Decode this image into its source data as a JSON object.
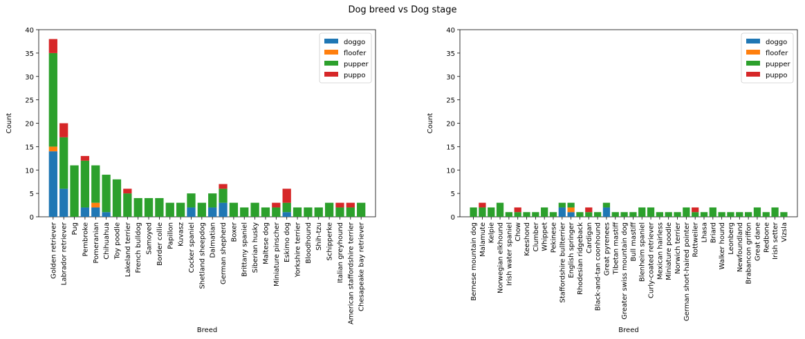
{
  "suptitle": "Dog breed vs Dog stage",
  "colors": {
    "doggo": "#1f77b4",
    "floofer": "#ff7f0e",
    "pupper": "#2ca02c",
    "puppo": "#d62728"
  },
  "chart_data": [
    {
      "type": "bar",
      "stacked": true,
      "title": "",
      "xlabel": "Breed",
      "ylabel": "Count",
      "ylim": [
        0,
        40
      ],
      "yticks": [
        0,
        5,
        10,
        15,
        20,
        25,
        30,
        35,
        40
      ],
      "legend": "top-right",
      "categories": [
        "Golden retriever",
        "Labrador retriever",
        "Pug",
        "Pembroke",
        "Pomeranian",
        "Chihuahua",
        "Toy poodle",
        "Lakeland terrier",
        "French bulldog",
        "Samoyed",
        "Border collie",
        "Papillon",
        "Kuvasz",
        "Cocker spaniel",
        "Shetland sheepdog",
        "Dalmatian",
        "German shepherd",
        "Boxer",
        "Brittany spaniel",
        "Siberian husky",
        "Maltese dog",
        "Miniature pinscher",
        "Eskimo dog",
        "Yorkshire terrier",
        "Bloodhound",
        "Shih-tzu",
        "Schipperke",
        "Italian greyhound",
        "American staffordshire terrier",
        "Chesapeake bay retriever"
      ],
      "series": [
        {
          "name": "doggo",
          "values": [
            14,
            6,
            0,
            2,
            2,
            1,
            0,
            0,
            0,
            0,
            0,
            0,
            0,
            2,
            0,
            2,
            3,
            0,
            0,
            0,
            0,
            0,
            1,
            0,
            0,
            0,
            0,
            0,
            0,
            0
          ]
        },
        {
          "name": "floofer",
          "values": [
            1,
            0,
            0,
            0,
            1,
            0,
            0,
            0,
            0,
            0,
            0,
            0,
            0,
            0,
            0,
            0,
            0,
            0,
            0,
            0,
            0,
            0,
            0,
            0,
            0,
            0,
            0,
            0,
            0,
            0
          ]
        },
        {
          "name": "pupper",
          "values": [
            20,
            11,
            11,
            10,
            8,
            8,
            8,
            5,
            4,
            4,
            4,
            3,
            3,
            3,
            3,
            3,
            3,
            3,
            2,
            3,
            2,
            2,
            2,
            2,
            2,
            2,
            3,
            2,
            2,
            3
          ]
        },
        {
          "name": "puppo",
          "values": [
            3,
            3,
            0,
            1,
            0,
            0,
            0,
            1,
            0,
            0,
            0,
            0,
            0,
            0,
            0,
            0,
            1,
            0,
            0,
            0,
            0,
            1,
            3,
            0,
            0,
            0,
            0,
            1,
            1,
            0
          ]
        }
      ]
    },
    {
      "type": "bar",
      "stacked": true,
      "title": "",
      "xlabel": "Breed",
      "ylabel": "Count",
      "ylim": [
        0,
        40
      ],
      "yticks": [
        0,
        5,
        10,
        15,
        20,
        25,
        30,
        35,
        40
      ],
      "legend": "top-right",
      "categories": [
        "Bernese mountain dog",
        "Malamute",
        "Kelpie",
        "Norwegian elkhound",
        "Irish water spaniel",
        "Chow",
        "Keeshond",
        "Clumber",
        "Whippet",
        "Pekinese",
        "Staffordshire bullterrier",
        "English springer",
        "Rhodesian ridgeback",
        "Cardigan",
        "Black-and-tan coonhound",
        "Great pyrenees",
        "Tibetan mastiff",
        "Greater swiss mountain dog",
        "Bull mastiff",
        "Blenheim spaniel",
        "Curly-coated retriever",
        "Mexican hairless",
        "Miniature poodle",
        "Norwich terrier",
        "German short-haired pointer",
        "Rottweiler",
        "Lhasa",
        "Briard",
        "Walker hound",
        "Leonberg",
        "Newfoundland",
        "Brabancon griffon",
        "Great dane",
        "Redbone",
        "Irish setter",
        "Vizsla"
      ],
      "series": [
        {
          "name": "doggo",
          "values": [
            0,
            0,
            0,
            0,
            0,
            0,
            0,
            0,
            0,
            0,
            2,
            1,
            0,
            0,
            0,
            2,
            0,
            0,
            0,
            0,
            0,
            0,
            0,
            0,
            0,
            0,
            0,
            0,
            0,
            0,
            0,
            0,
            0,
            0,
            0,
            0
          ]
        },
        {
          "name": "floofer",
          "values": [
            0,
            0,
            0,
            0,
            0,
            0,
            0,
            0,
            0,
            0,
            0,
            1,
            0,
            0,
            0,
            0,
            0,
            0,
            0,
            0,
            0,
            0,
            0,
            0,
            0,
            0,
            0,
            0,
            0,
            0,
            0,
            0,
            0,
            0,
            0,
            0
          ]
        },
        {
          "name": "pupper",
          "values": [
            2,
            2,
            2,
            3,
            1,
            1,
            1,
            1,
            2,
            1,
            1,
            1,
            1,
            1,
            1,
            1,
            1,
            1,
            1,
            2,
            2,
            1,
            1,
            1,
            2,
            1,
            1,
            2,
            1,
            1,
            1,
            1,
            2,
            1,
            2,
            1
          ]
        },
        {
          "name": "puppo",
          "values": [
            0,
            1,
            0,
            0,
            0,
            1,
            0,
            0,
            0,
            0,
            0,
            0,
            0,
            1,
            0,
            0,
            0,
            0,
            0,
            0,
            0,
            0,
            0,
            0,
            0,
            1,
            0,
            0,
            0,
            0,
            0,
            0,
            0,
            0,
            0,
            0
          ]
        }
      ]
    }
  ]
}
